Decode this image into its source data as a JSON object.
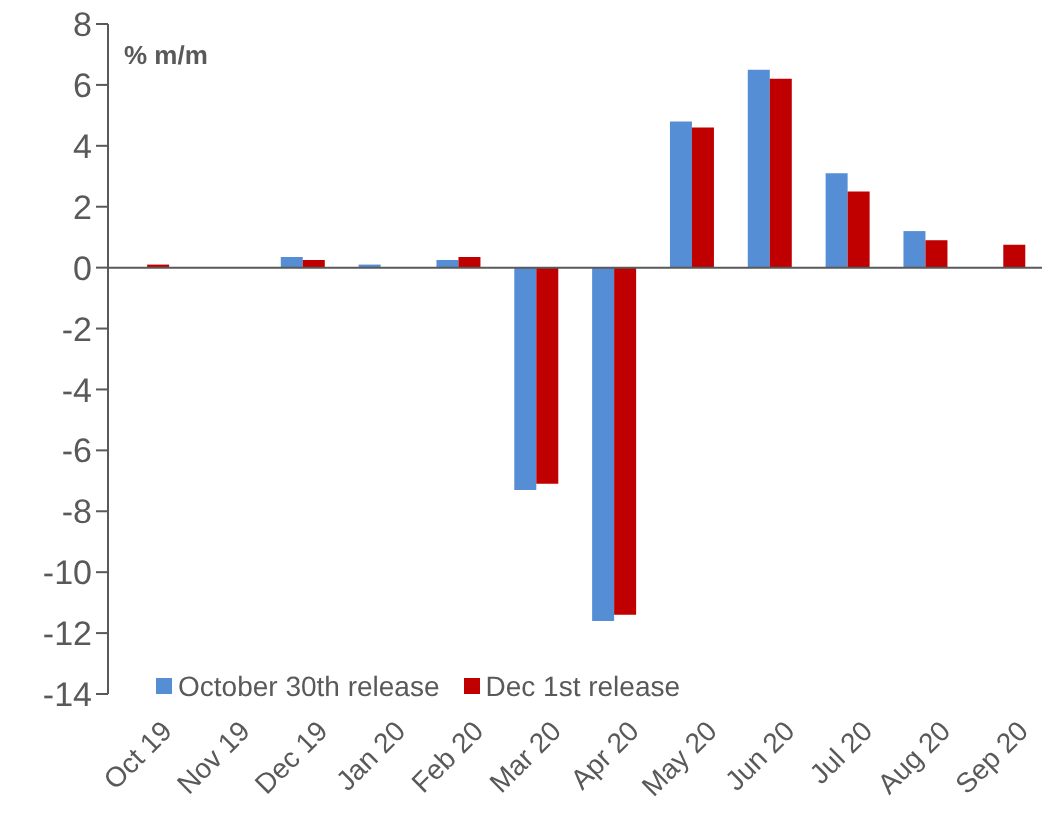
{
  "chart_data": {
    "type": "bar",
    "ylabel": "% m/m",
    "categories": [
      "Oct 19",
      "Nov 19",
      "Dec 19",
      "Jan 20",
      "Feb 20",
      "Mar 20",
      "Apr 20",
      "May 20",
      "Jun 20",
      "Jul 20",
      "Aug 20",
      "Sep 20"
    ],
    "series": [
      {
        "name": "October 30th release",
        "color": "#558ed5",
        "values": [
          0,
          0,
          0.35,
          0.1,
          0.25,
          -7.3,
          -11.6,
          4.8,
          6.5,
          3.1,
          1.2,
          null
        ]
      },
      {
        "name": "Dec 1st release",
        "color": "#c00000",
        "values": [
          0.1,
          0,
          0.25,
          0,
          0.35,
          -7.1,
          -11.4,
          4.6,
          6.2,
          2.5,
          0.9,
          0.75
        ]
      }
    ],
    "ylim": [
      -14,
      8
    ],
    "yticks": [
      -14,
      -12,
      -10,
      -8,
      -6,
      -4,
      -2,
      0,
      2,
      4,
      6,
      8
    ],
    "legend": "bottom left"
  }
}
